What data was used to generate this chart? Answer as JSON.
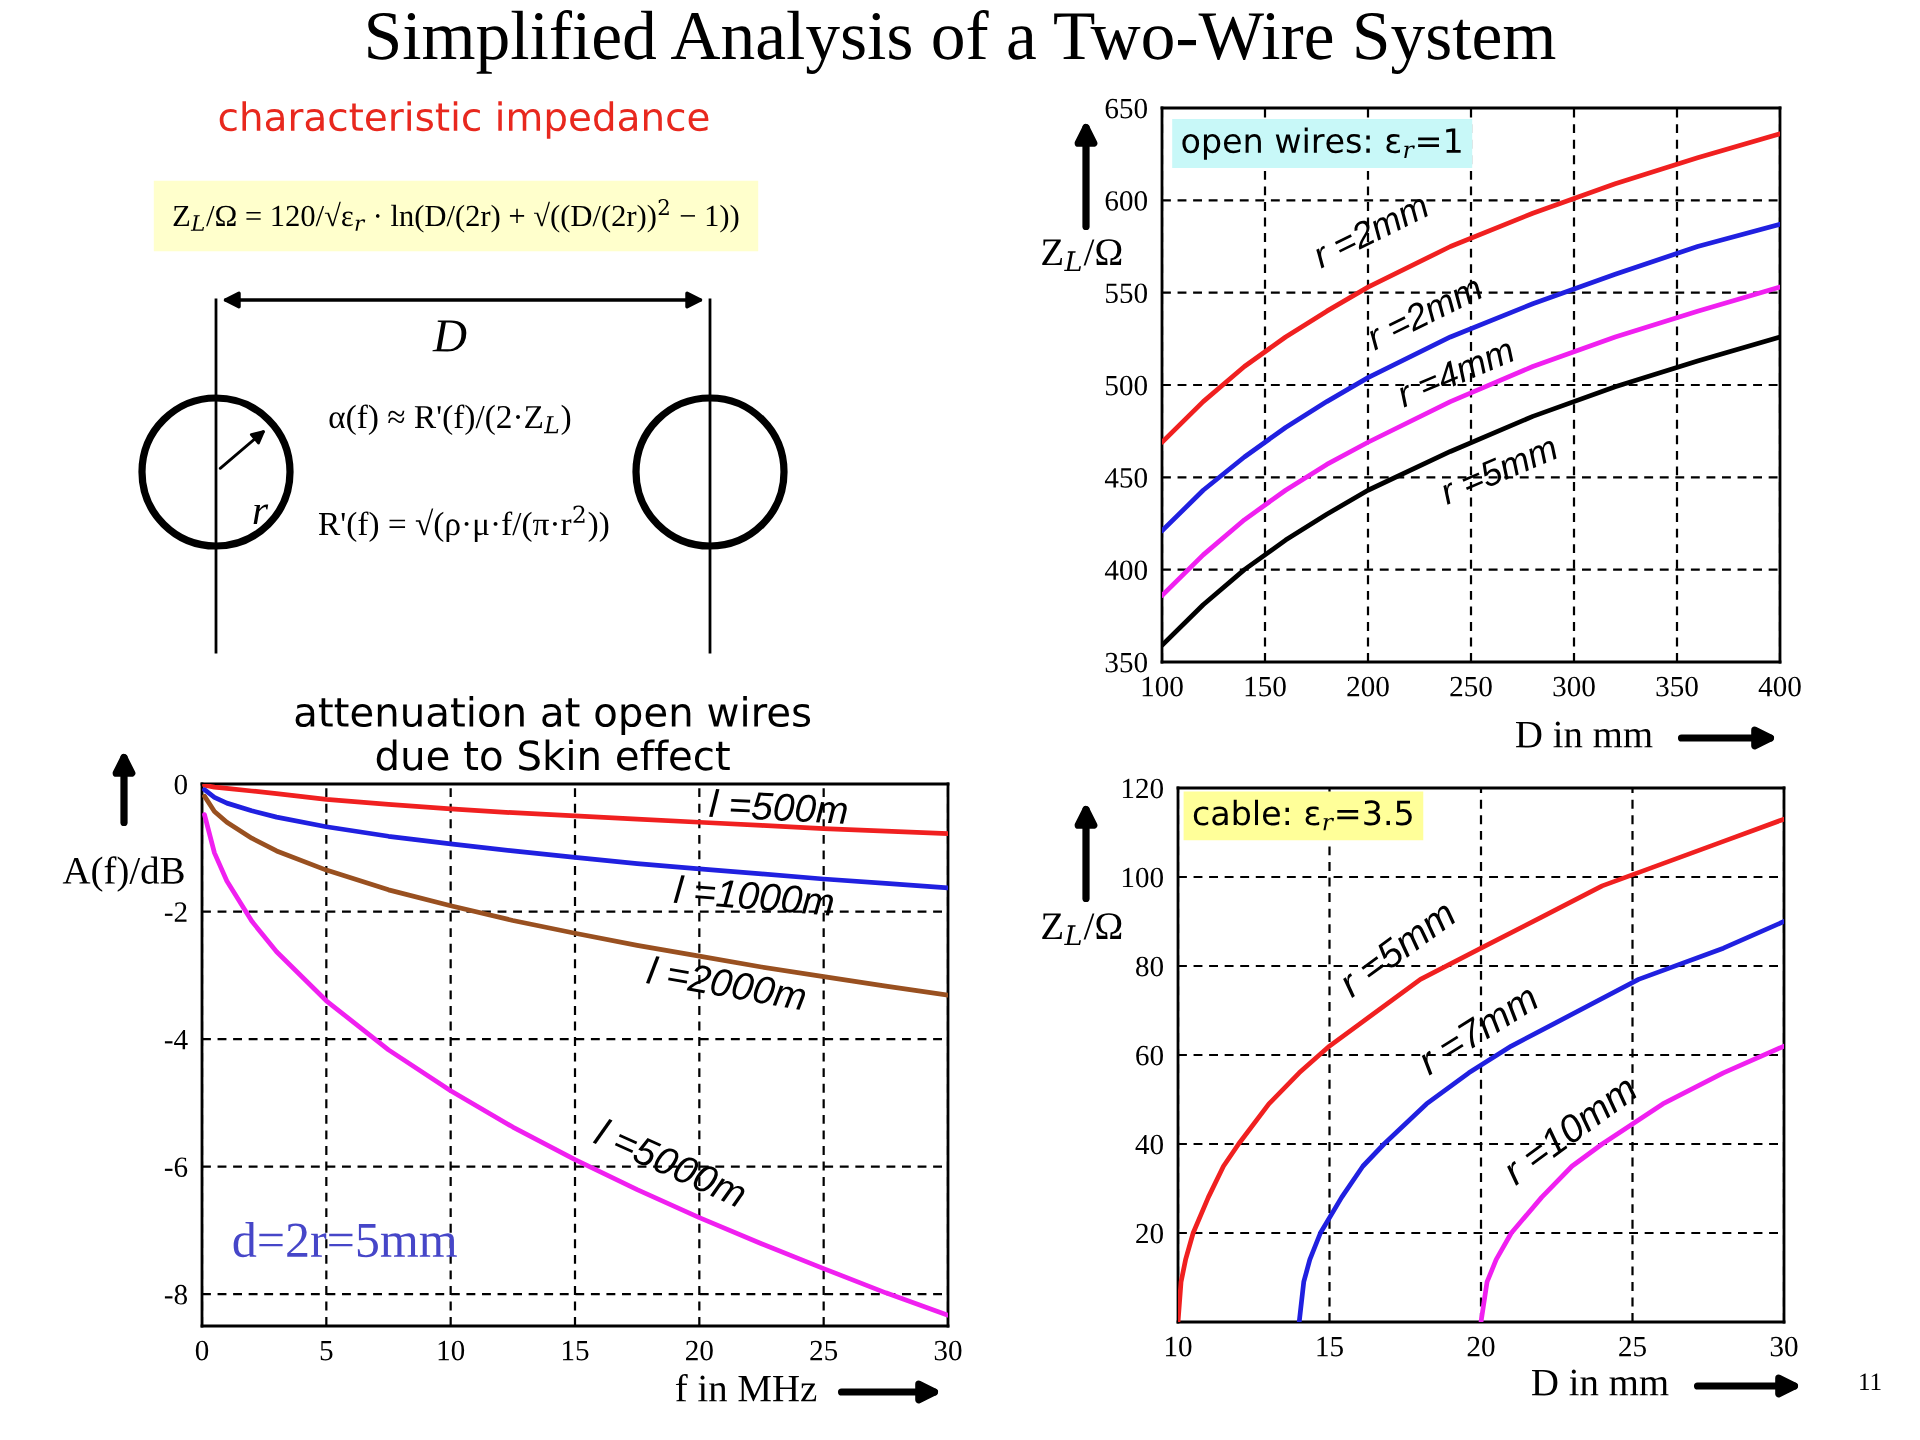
{
  "chart_data": [
    {
      "type": "other",
      "title": "Simplified Analysis of a Two-Wire System",
      "annotations": [
        "characteristic impedance",
        "Z$_{L}$/Ω = 120/√ε$_{r}$ · ln(D/(2r) + √((D/(2r))$^{2}$ − 1))",
        "D",
        "r",
        "α(f) ≈ R'(f)/(2·Z$_{L}$)",
        "R'(f) = √(ρ·μ·f/(π·r$^{2}$))",
        "11"
      ]
    },
    {
      "type": "line",
      "x": [
        100,
        120,
        140,
        160,
        180,
        200,
        240,
        280,
        320,
        360,
        400
      ],
      "series": [
        {
          "name": "r =2mm",
          "color": "#f02020",
          "values": [
            469,
            491,
            510,
            526,
            540,
            553,
            575,
            593,
            609,
            623,
            636
          ]
        },
        {
          "name": "r =2mm",
          "color": "#2020e0",
          "values": [
            421,
            443,
            461,
            477,
            491,
            504,
            526,
            544,
            560,
            575,
            587
          ]
        },
        {
          "name": "r =4mm",
          "color": "#f020f0",
          "values": [
            386,
            408,
            427,
            443,
            457,
            469,
            491,
            510,
            526,
            540,
            553
          ]
        },
        {
          "name": "r =5mm",
          "color": "#000000",
          "values": [
            359,
            381,
            400,
            416,
            430,
            443,
            464,
            483,
            499,
            513,
            526
          ]
        }
      ],
      "xlabel": "D in mm",
      "ylabel": "Z$_{L}$/Ω",
      "xlim": [
        100,
        400
      ],
      "ylim": [
        350,
        650
      ],
      "xticks": [
        100,
        150,
        200,
        250,
        300,
        350,
        400
      ],
      "yticks": [
        350,
        400,
        450,
        500,
        550,
        600,
        650
      ],
      "grid": true,
      "annotations": [
        "open wires: ε$_{r}$=1"
      ]
    },
    {
      "type": "line",
      "title": "attenuation at open wires\ndue to Skin effect",
      "x": [
        0.1,
        0.5,
        1,
        2,
        3,
        5,
        7.5,
        10,
        12.5,
        15,
        17.5,
        20,
        22.5,
        25,
        27.5,
        30
      ],
      "series": [
        {
          "name": "l =500m",
          "color": "#f02020",
          "values": [
            -0.02,
            -0.05,
            -0.07,
            -0.11,
            -0.15,
            -0.24,
            -0.32,
            -0.39,
            -0.45,
            -0.5,
            -0.55,
            -0.6,
            -0.65,
            -0.7,
            -0.74,
            -0.78
          ]
        },
        {
          "name": "l =1000m",
          "color": "#2020e0",
          "values": [
            -0.09,
            -0.21,
            -0.3,
            -0.42,
            -0.52,
            -0.67,
            -0.82,
            -0.94,
            -1.05,
            -1.15,
            -1.25,
            -1.33,
            -1.41,
            -1.49,
            -1.56,
            -1.63
          ]
        },
        {
          "name": "l =2000m",
          "color": "#995020",
          "values": [
            -0.19,
            -0.43,
            -0.6,
            -0.85,
            -1.05,
            -1.35,
            -1.66,
            -1.91,
            -2.14,
            -2.34,
            -2.53,
            -2.7,
            -2.87,
            -3.02,
            -3.17,
            -3.31
          ]
        },
        {
          "name": "l =5000m",
          "color": "#f020f0",
          "values": [
            -0.48,
            -1.08,
            -1.52,
            -2.15,
            -2.63,
            -3.4,
            -4.17,
            -4.81,
            -5.38,
            -5.89,
            -6.36,
            -6.8,
            -7.21,
            -7.6,
            -7.98,
            -8.33
          ]
        }
      ],
      "xlabel": "f in MHz",
      "ylabel": "A(f)/dB",
      "xlim": [
        0,
        30
      ],
      "ylim": [
        -8.5,
        0
      ],
      "xticks": [
        0,
        5,
        10,
        15,
        20,
        25,
        30
      ],
      "yticks": [
        0,
        -2,
        -4,
        -6,
        -8
      ],
      "grid": true,
      "annotations": [
        "d=2r=5mm"
      ]
    },
    {
      "type": "line",
      "series": [
        {
          "name": "r =5mm",
          "color": "#f02020",
          "x": [
            10,
            10.1,
            10.25,
            10.5,
            11,
            11.5,
            12,
            13,
            14,
            15,
            16,
            18,
            20,
            22,
            24,
            26,
            28,
            30
          ],
          "values": [
            0,
            9,
            14,
            20,
            28,
            35,
            40,
            49,
            56,
            62,
            67,
            77,
            84,
            91,
            98,
            103,
            108,
            113
          ]
        },
        {
          "name": "r =7mm",
          "color": "#2020e0",
          "x": [
            14,
            14.15,
            14.35,
            14.7,
            15.4,
            16.1,
            16.8,
            18.2,
            19.6,
            21,
            22.4,
            25.2,
            28,
            30
          ],
          "values": [
            0,
            9,
            14,
            20,
            28,
            35,
            40,
            49,
            56,
            62,
            67,
            77,
            84,
            90
          ]
        },
        {
          "name": "r =10mm",
          "color": "#f020f0",
          "x": [
            20,
            20.2,
            20.5,
            21,
            22,
            23,
            24,
            26,
            28,
            30
          ],
          "values": [
            0,
            9,
            14,
            20,
            28,
            35,
            40,
            49,
            56,
            62
          ]
        }
      ],
      "xlabel": "D in mm",
      "ylabel": "Z$_{L}$/Ω",
      "xlim": [
        10,
        30
      ],
      "ylim": [
        0,
        120
      ],
      "xticks": [
        10,
        15,
        20,
        25,
        30
      ],
      "yticks": [
        20,
        40,
        60,
        80,
        100,
        120
      ],
      "grid": true,
      "annotations": [
        "cable: ε$_{r}$=3.5"
      ]
    }
  ]
}
